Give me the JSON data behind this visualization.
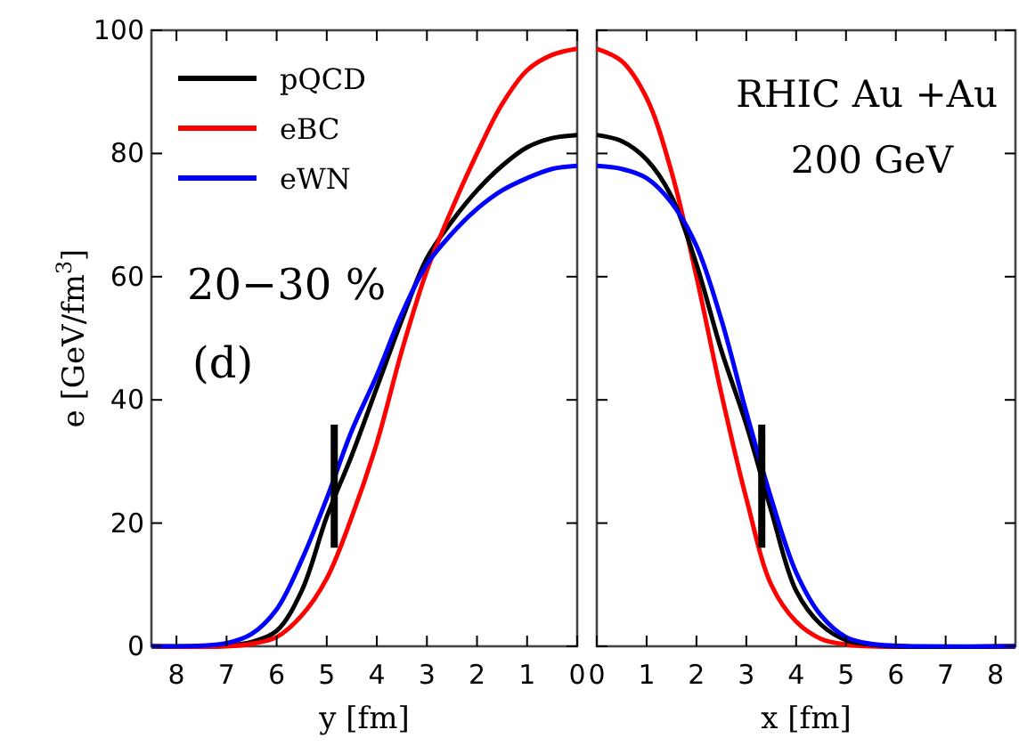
{
  "chart_data": [
    {
      "type": "line",
      "ylabel": "e [GeV/fm$^{3}$]",
      "xlabel": "y [fm]",
      "xlim": [
        8.5,
        0
      ],
      "xticks": [
        8,
        7,
        6,
        5,
        4,
        3,
        2,
        1,
        0
      ],
      "ylim": [
        0,
        100
      ],
      "yticks": [
        0,
        20,
        40,
        60,
        80,
        100
      ],
      "legend": "top left",
      "grid": false,
      "annotations": [
        "20−30 %",
        "(d)"
      ],
      "series": [
        {
          "name": "pQCD",
          "color": "#000000",
          "x": [
            0,
            0.5,
            1,
            1.5,
            2,
            2.5,
            3,
            3.5,
            4,
            4.5,
            5,
            5.5,
            6,
            6.5,
            7,
            8.5
          ],
          "values": [
            83,
            82.5,
            81,
            78,
            74,
            69,
            63,
            53,
            42,
            31,
            21,
            9,
            2.5,
            0.7,
            0.1,
            0
          ]
        },
        {
          "name": "eBC",
          "color": "#ff0000",
          "x": [
            0,
            0.5,
            1,
            1.5,
            2,
            2.5,
            3,
            3.5,
            4,
            4.5,
            5,
            5.5,
            6,
            6.5,
            7,
            8.5
          ],
          "values": [
            97,
            96,
            93.5,
            88,
            80,
            71,
            61,
            48,
            33,
            21,
            11,
            5,
            1.5,
            0.4,
            0,
            0
          ]
        },
        {
          "name": "eWN",
          "color": "#0000ff",
          "x": [
            0,
            0.5,
            1,
            1.5,
            2,
            2.5,
            3,
            3.5,
            4,
            4.5,
            5,
            5.5,
            6,
            6.5,
            7,
            7.5,
            8.5
          ],
          "values": [
            78,
            77.5,
            76,
            74,
            71,
            67,
            62,
            54,
            44,
            35,
            24,
            14,
            6,
            2,
            0.5,
            0.1,
            0
          ]
        },
        {
          "color": "#000000",
          "x": [
            4.85,
            4.85
          ],
          "values": [
            16,
            36
          ]
        }
      ]
    },
    {
      "type": "line",
      "xlabel": "x [fm]",
      "xlim": [
        0,
        8.4
      ],
      "xticks": [
        0,
        1,
        2,
        3,
        4,
        5,
        6,
        7,
        8
      ],
      "ylim": [
        0,
        100
      ],
      "yticks": [
        0,
        20,
        40,
        60,
        80,
        100
      ],
      "tick_labels": "x",
      "grid": false,
      "annotations": [
        "RHIC Au +Au",
        "200 GeV"
      ],
      "series": [
        {
          "color": "#ff0000",
          "x": [
            0,
            0.5,
            1,
            1.5,
            2,
            2.5,
            3,
            3.5,
            4,
            4.5,
            5,
            5.5,
            8.4
          ],
          "values": [
            97,
            95,
            89,
            77,
            60,
            41,
            24,
            10,
            4,
            1.2,
            0.3,
            0,
            0
          ]
        },
        {
          "color": "#000000",
          "x": [
            0,
            0.5,
            1,
            1.5,
            2,
            2.5,
            3,
            3.5,
            4,
            4.5,
            5,
            5.5,
            6,
            8.4
          ],
          "values": [
            83,
            82,
            79,
            73,
            62,
            48,
            36,
            22,
            9,
            3.5,
            1,
            0.3,
            0,
            0
          ]
        },
        {
          "color": "#0000ff",
          "x": [
            0,
            0.5,
            1,
            1.5,
            2,
            2.5,
            3,
            3.5,
            4,
            4.5,
            5,
            5.5,
            6,
            6.5,
            8.4
          ],
          "values": [
            78,
            77.5,
            76,
            72,
            65,
            53,
            38,
            24,
            12,
            5,
            1.5,
            0.4,
            0.1,
            0,
            0
          ]
        },
        {
          "color": "#000000",
          "x": [
            3.31,
            3.31
          ],
          "values": [
            16,
            36
          ]
        }
      ]
    }
  ]
}
